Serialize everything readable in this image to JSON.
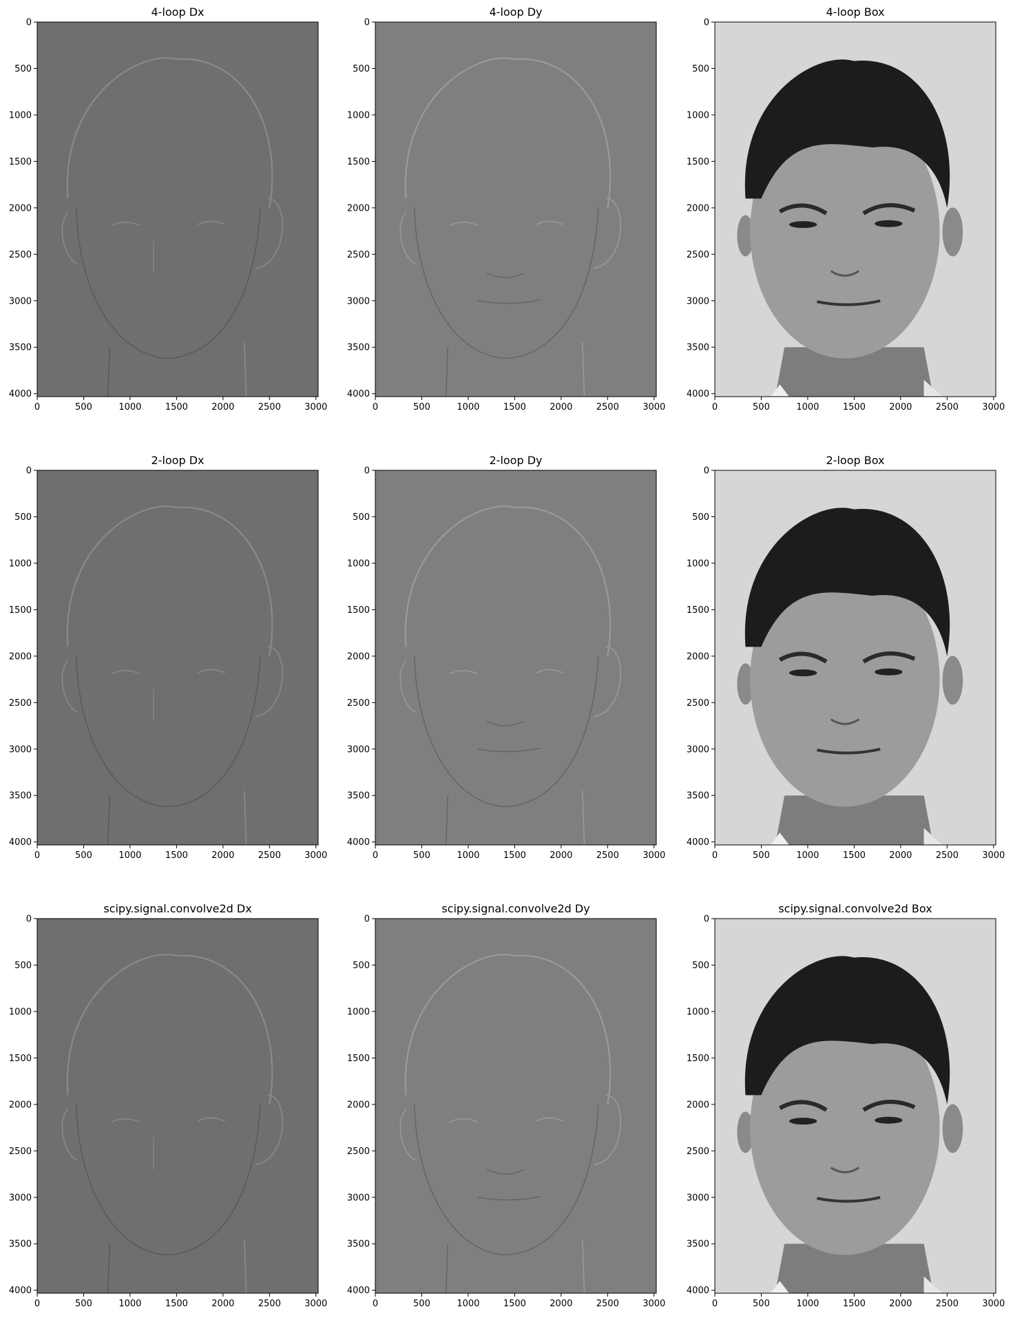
{
  "figure": {
    "panels": [
      {
        "title": "4-loop Dx",
        "kind": "dx"
      },
      {
        "title": "4-loop Dy",
        "kind": "dy"
      },
      {
        "title": "4-loop Box",
        "kind": "box"
      },
      {
        "title": "2-loop Dx",
        "kind": "dx"
      },
      {
        "title": "2-loop Dy",
        "kind": "dy"
      },
      {
        "title": "2-loop Box",
        "kind": "box"
      },
      {
        "title": "scipy.signal.convolve2d Dx",
        "kind": "dx"
      },
      {
        "title": "scipy.signal.convolve2d Dy",
        "kind": "dy"
      },
      {
        "title": "scipy.signal.convolve2d Box",
        "kind": "box"
      }
    ]
  },
  "chart_data": {
    "type": "image",
    "grid": false,
    "xlim": [
      0,
      3024
    ],
    "ylim": [
      4032,
      0
    ],
    "x_ticks": [
      "0",
      "500",
      "1000",
      "1500",
      "2000",
      "2500",
      "3000"
    ],
    "y_ticks": [
      "0",
      "500",
      "1000",
      "1500",
      "2000",
      "2500",
      "3000",
      "3500",
      "4000"
    ],
    "colors": {
      "dx_background": "#6f6f6f",
      "dy_background": "#7f7f7f",
      "box_background": "#d6d6d6",
      "hair": "#1c1c1c",
      "skin": "#9c9c9c"
    }
  }
}
